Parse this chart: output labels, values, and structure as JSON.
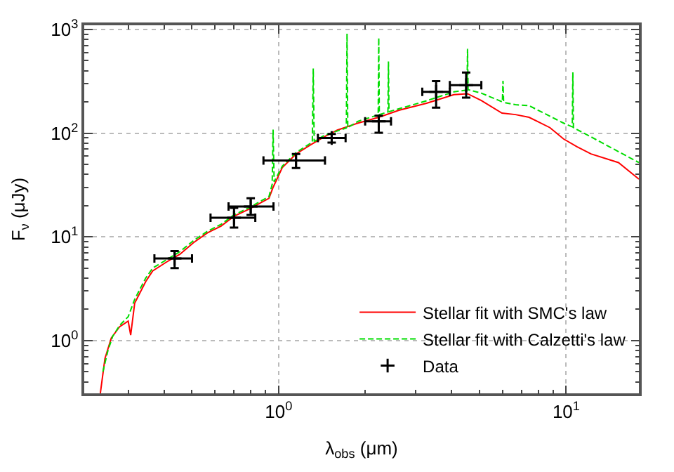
{
  "chart_data": {
    "type": "line",
    "xlabel": "λ$_{obs}$ (μm)",
    "ylabel": "F$_{ν}$ (μJy)",
    "log": "xy",
    "grid": true,
    "legend": "bottom right",
    "xlim": [
      0.211,
      17.9
    ],
    "ylim": [
      0.31,
      1096
    ],
    "xticks": [
      {
        "value": 0.3,
        "label": null
      },
      {
        "value": 0.4,
        "label": null
      },
      {
        "value": 0.5,
        "label": null
      },
      {
        "value": 0.6,
        "label": null
      },
      {
        "value": 0.7,
        "label": null
      },
      {
        "value": 0.8,
        "label": null
      },
      {
        "value": 0.9,
        "label": null
      },
      {
        "value": 1,
        "label": "10$^{0}$"
      },
      {
        "value": 2,
        "label": null
      },
      {
        "value": 3,
        "label": null
      },
      {
        "value": 4,
        "label": null
      },
      {
        "value": 5,
        "label": null
      },
      {
        "value": 6,
        "label": null
      },
      {
        "value": 7,
        "label": null
      },
      {
        "value": 8,
        "label": null
      },
      {
        "value": 9,
        "label": null
      },
      {
        "value": 10,
        "label": "10$^{1}$"
      }
    ],
    "yticks": [
      {
        "value": 0.4,
        "label": null
      },
      {
        "value": 0.5,
        "label": null
      },
      {
        "value": 0.6,
        "label": null
      },
      {
        "value": 0.7,
        "label": null
      },
      {
        "value": 0.8,
        "label": null
      },
      {
        "value": 0.9,
        "label": null
      },
      {
        "value": 1,
        "label": "10$^{0}$"
      },
      {
        "value": 2,
        "label": null
      },
      {
        "value": 3,
        "label": null
      },
      {
        "value": 4,
        "label": null
      },
      {
        "value": 5,
        "label": null
      },
      {
        "value": 6,
        "label": null
      },
      {
        "value": 7,
        "label": null
      },
      {
        "value": 8,
        "label": null
      },
      {
        "value": 9,
        "label": null
      },
      {
        "value": 10,
        "label": "10$^{1}$"
      },
      {
        "value": 20,
        "label": null
      },
      {
        "value": 30,
        "label": null
      },
      {
        "value": 40,
        "label": null
      },
      {
        "value": 50,
        "label": null
      },
      {
        "value": 60,
        "label": null
      },
      {
        "value": 70,
        "label": null
      },
      {
        "value": 80,
        "label": null
      },
      {
        "value": 90,
        "label": null
      },
      {
        "value": 100,
        "label": "10$^{2}$"
      },
      {
        "value": 200,
        "label": null
      },
      {
        "value": 300,
        "label": null
      },
      {
        "value": 400,
        "label": null
      },
      {
        "value": 500,
        "label": null
      },
      {
        "value": 600,
        "label": null
      },
      {
        "value": 700,
        "label": null
      },
      {
        "value": 800,
        "label": null
      },
      {
        "value": 900,
        "label": null
      },
      {
        "value": 1000,
        "label": "10$^{3}$"
      }
    ],
    "series": [
      {
        "name": "Stellar fit with SMC's law",
        "type": "line",
        "color": "#ff0000",
        "line_style": "solid",
        "x": [
          0.24,
          0.249,
          0.262,
          0.28,
          0.3,
          0.306,
          0.316,
          0.345,
          0.365,
          0.407,
          0.454,
          0.506,
          0.565,
          0.631,
          0.7,
          0.786,
          0.926,
          0.957,
          1.03,
          1.15,
          1.29,
          1.44,
          1.6,
          1.89,
          2.23,
          2.62,
          3.27,
          4.07,
          4.54,
          5.07,
          5.98,
          6.66,
          7.43,
          8.78,
          9.79,
          10.9,
          12.2,
          15.2,
          17.9
        ],
        "values": [
          0.31,
          0.67,
          1.06,
          1.36,
          1.54,
          1.13,
          2.3,
          3.7,
          4.7,
          5.7,
          6.8,
          8.8,
          10.9,
          12.7,
          15.8,
          18.4,
          23.5,
          30,
          46.5,
          63,
          77,
          92,
          107,
          125,
          142,
          166,
          194,
          235,
          240,
          206,
          156,
          151,
          142,
          113,
          88,
          74,
          63,
          52,
          36
        ]
      },
      {
        "name": "Stellar fit with Calzetti's law",
        "type": "line",
        "color": "#00dd00",
        "line_style": "dashed",
        "x": [
          0.245,
          0.255,
          0.265,
          0.28,
          0.3,
          0.316,
          0.345,
          0.365,
          0.407,
          0.454,
          0.506,
          0.565,
          0.631,
          0.7,
          0.786,
          0.926,
          0.95,
          0.957,
          0.965,
          1.03,
          1.15,
          1.31,
          1.32,
          1.33,
          1.44,
          1.72,
          1.73,
          1.74,
          1.89,
          2.22,
          2.23,
          2.24,
          2.4,
          2.41,
          2.42,
          3.27,
          4.07,
          4.52,
          4.54,
          4.56,
          5.07,
          6.0,
          6.03,
          6.06,
          6.66,
          7.43,
          9.79,
          10.5,
          10.55,
          10.6,
          12.2,
          17.9
        ],
        "values": [
          0.5,
          0.8,
          1.1,
          1.4,
          1.7,
          2.5,
          4.0,
          5.0,
          6.0,
          7.2,
          9.2,
          11.3,
          13.2,
          16.3,
          19.0,
          24.5,
          32,
          108,
          34,
          48,
          65,
          82,
          420,
          83,
          95,
          112,
          910,
          113,
          130,
          150,
          830,
          151,
          160,
          490,
          161,
          205,
          250,
          260,
          650,
          262,
          243,
          200,
          320,
          198,
          188,
          184,
          125,
          115,
          385,
          113,
          92,
          52
        ]
      },
      {
        "name": "Data",
        "type": "scatter",
        "color": "#000000",
        "marker": "cross",
        "x": [
          0.435,
          0.7,
          0.8,
          1.15,
          1.53,
          2.23,
          3.53,
          4.49
        ],
        "values": [
          6.2,
          15.3,
          19.6,
          54.5,
          89.7,
          130,
          250,
          290
        ],
        "errors": [
          [
            5.0,
            7.3
          ],
          [
            12.3,
            19.0
          ],
          [
            16.3,
            23.6
          ],
          [
            46,
            63
          ],
          [
            81,
            98
          ],
          [
            101,
            147
          ],
          [
            176,
            317
          ],
          [
            220,
            384
          ]
        ],
        "xerrors": [
          [
            0.37,
            0.5
          ],
          [
            0.58,
            0.83
          ],
          [
            0.67,
            0.96
          ],
          [
            0.886,
            1.45
          ],
          [
            1.37,
            1.71
          ],
          [
            2.0,
            2.46
          ],
          [
            3.16,
            3.94
          ],
          [
            3.94,
            5.07
          ]
        ]
      }
    ]
  }
}
